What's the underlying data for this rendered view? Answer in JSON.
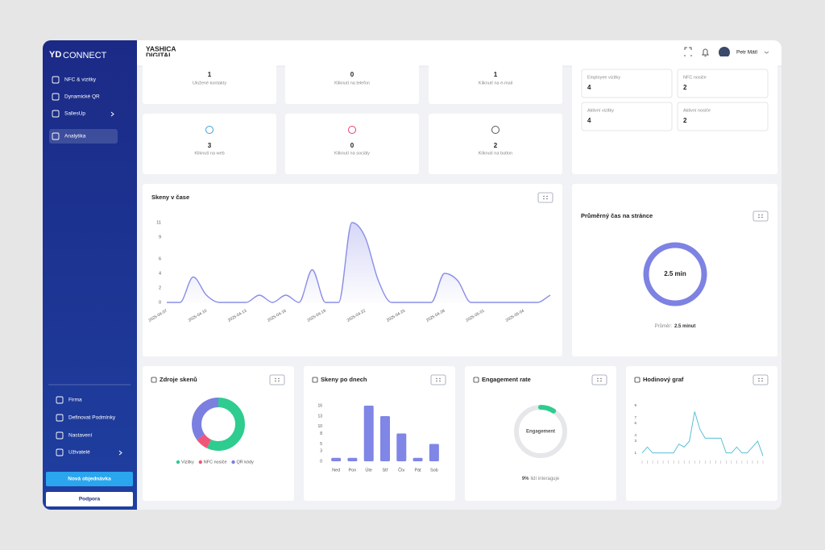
{
  "sidebar": {
    "logo_mark": "YD",
    "logo": "CONNECT",
    "menu": [
      "NFC & vizitky",
      "Dynamické QR",
      "SallesUp",
      "Analytika"
    ],
    "bottom_menu": [
      "Firma",
      "Definovat Podmínky",
      "Nastavení",
      "Uživatelé"
    ],
    "buttons": [
      "Nová objednávka",
      "Podpora"
    ]
  },
  "header": {
    "brand": [
      "YASHICA",
      "DIGITAL"
    ],
    "user": "Petr Mátl"
  },
  "stats": [
    {
      "value": 1,
      "label": "Uložené kontakty"
    },
    {
      "value": 0,
      "label": "Kliknutí na telefon"
    },
    {
      "value": 1,
      "label": "Kliknutí na e-mail"
    },
    {
      "value": 3,
      "label": "Kliknutí na web"
    },
    {
      "value": 0,
      "label": "Kliknutí na sociály"
    },
    {
      "value": 2,
      "label": "Kliknutí na button"
    }
  ],
  "summary": [
    {
      "label": "Employee vizitky",
      "value": 4
    },
    {
      "label": "NFC nosiče",
      "value": 2
    },
    {
      "label": "Aktivní vizitky",
      "value": 4
    },
    {
      "label": "Aktivní nosiče",
      "value": 2
    }
  ],
  "chart_data": [
    {
      "type": "line",
      "title": "Skeny v čase",
      "categories": [
        "2025-04-07",
        null,
        null,
        "2025-04-10",
        null,
        null,
        "2025-04-13",
        null,
        null,
        "2025-04-16",
        null,
        null,
        "2025-04-19",
        null,
        null,
        "2025-04-22",
        null,
        null,
        "2025-04-25",
        null,
        null,
        "2025-04-28",
        null,
        null,
        "2025-05-01",
        null,
        null,
        "2025-05-04",
        null,
        null
      ],
      "values": [
        0,
        0,
        3.5,
        1,
        0,
        0,
        0,
        1,
        0,
        1,
        0,
        4.5,
        0,
        0,
        11,
        9,
        3,
        0,
        0,
        0,
        0,
        4,
        3,
        0,
        0,
        0,
        0,
        0,
        0,
        1
      ],
      "color": "#8a8ee6",
      "ylim": [
        0,
        11
      ],
      "yticks": [
        0,
        2,
        4,
        6,
        9,
        11
      ],
      "grid": false
    },
    {
      "type": "ring",
      "title": "Průměrný čas na stránce",
      "center_label": "2.5 min",
      "note_label": "Průměr:",
      "note_value": "2.5 minut",
      "color": "#7d82e3"
    },
    {
      "type": "donut",
      "title": "Zdroje skenů",
      "categories": [
        "Vizitky",
        "NFC nosiče",
        "QR kódy"
      ],
      "values": [
        57,
        8,
        35
      ],
      "colors": [
        "#2ecc8f",
        "#f0567a",
        "#7b7fe0"
      ]
    },
    {
      "type": "bar",
      "title": "Skeny po dnech",
      "categories": [
        "Ned",
        "Pon",
        "Úte",
        "Stř",
        "Čtv",
        "Pát",
        "Sob"
      ],
      "values": [
        1,
        1,
        16,
        13,
        8,
        1,
        5
      ],
      "color": "#7f86e6",
      "ylim": [
        0,
        16
      ],
      "yticks": [
        0,
        3,
        5,
        8,
        10,
        13,
        16
      ],
      "grid": false
    },
    {
      "type": "progress",
      "title": "Engagement rate",
      "center_label": "Engagement",
      "values": [
        9
      ],
      "value_labels": [
        "9%"
      ],
      "caption": "lidí interaguje",
      "ylim": [
        0,
        100
      ],
      "color": "#2ecc8f",
      "track_color": "#e6e7ea"
    },
    {
      "type": "line",
      "title": "Hodinový graf",
      "categories": [
        null,
        null,
        null,
        null,
        null,
        null,
        null,
        null,
        null,
        null,
        null,
        null,
        null,
        null,
        null,
        null,
        null,
        null,
        null,
        null,
        null,
        null,
        null,
        null
      ],
      "values": [
        1,
        2,
        1,
        1,
        1,
        1,
        1,
        2.5,
        2,
        3,
        8,
        5,
        3.5,
        3.5,
        3.5,
        3.5,
        1,
        1,
        2,
        1,
        1,
        2,
        3,
        0.5
      ],
      "color": "#5bbfd6",
      "ylim": [
        0,
        9
      ],
      "yticks": [
        1,
        3,
        4,
        6,
        7,
        9
      ],
      "grid": false
    }
  ]
}
